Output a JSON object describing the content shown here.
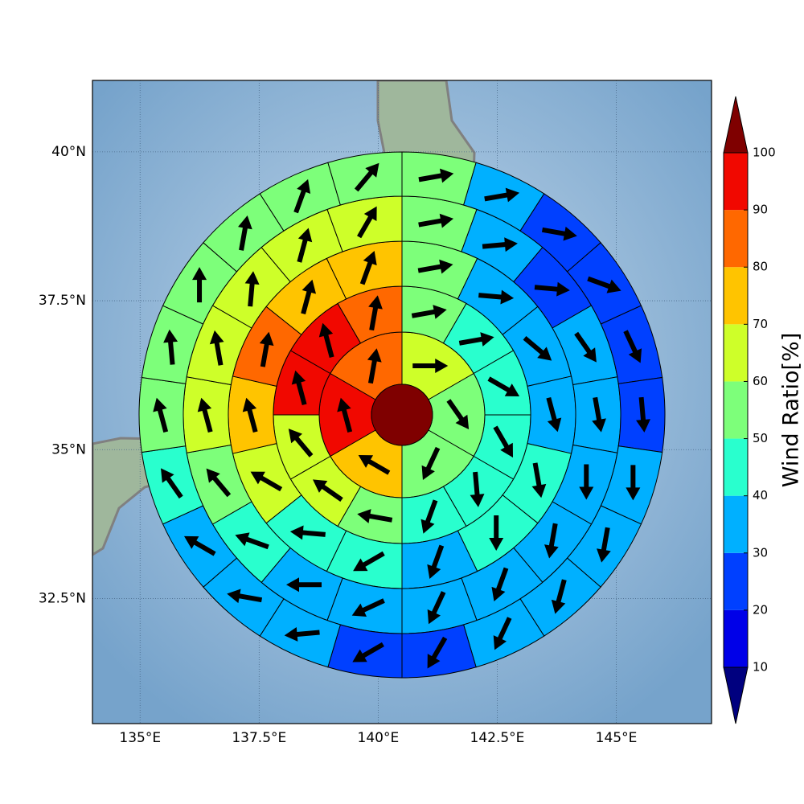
{
  "chart_data": {
    "type": "polar_grid_map",
    "xlim": [
      134,
      147
    ],
    "ylim": [
      30.4,
      41.2
    ],
    "xticks": [
      {
        "value": 135,
        "label": "135°E"
      },
      {
        "value": 137.5,
        "label": "137.5°E"
      },
      {
        "value": 140,
        "label": "140°E"
      },
      {
        "value": 142.5,
        "label": "142.5°E"
      },
      {
        "value": 145,
        "label": "145°E"
      }
    ],
    "yticks": [
      {
        "value": 32.5,
        "label": "32.5°N"
      },
      {
        "value": 35,
        "label": "35°N"
      },
      {
        "value": 37.5,
        "label": "37.5°N"
      },
      {
        "value": 40,
        "label": "40°N"
      }
    ],
    "grid": true,
    "center_value": 105,
    "rings": [
      {
        "values": [
          65,
          55,
          55,
          75,
          95,
          85
        ],
        "directions": [
          90,
          145,
          205,
          300,
          345,
          10
        ]
      },
      {
        "values": [
          55,
          45,
          45,
          45,
          45,
          45,
          55,
          65,
          65,
          95,
          95,
          85
        ],
        "directions": [
          80,
          80,
          120,
          150,
          175,
          200,
          280,
          305,
          320,
          345,
          345,
          10
        ]
      },
      {
        "values": [
          55,
          35,
          35,
          35,
          45,
          45,
          35,
          45,
          45,
          65,
          75,
          85,
          75,
          75
        ],
        "directions": [
          80,
          95,
          130,
          165,
          170,
          180,
          200,
          240,
          275,
          300,
          345,
          10,
          15,
          20
        ]
      },
      {
        "values": [
          55,
          35,
          25,
          35,
          35,
          35,
          35,
          35,
          35,
          35,
          35,
          45,
          55,
          65,
          65,
          65,
          65,
          65
        ],
        "directions": [
          80,
          85,
          95,
          145,
          170,
          180,
          190,
          200,
          205,
          245,
          270,
          290,
          320,
          345,
          350,
          5,
          15,
          30
        ]
      },
      {
        "values": [
          55,
          35,
          25,
          25,
          25,
          25,
          35,
          35,
          35,
          35,
          25,
          25,
          35,
          35,
          35,
          45,
          55,
          55,
          55,
          55,
          55,
          55
        ],
        "directions": [
          80,
          80,
          100,
          110,
          155,
          175,
          180,
          190,
          195,
          205,
          210,
          240,
          265,
          280,
          300,
          325,
          345,
          355,
          0,
          10,
          20,
          40
        ]
      }
    ],
    "colorbar": {
      "label": "Wind Ratio[%]",
      "levels": [
        10,
        20,
        30,
        40,
        50,
        60,
        70,
        80,
        90,
        100
      ],
      "colors": [
        "#0000e8",
        "#0040ff",
        "#00b0ff",
        "#29ffce",
        "#7dff7a",
        "#ceff29",
        "#ffc400",
        "#ff6800",
        "#f10800"
      ],
      "under_color": "#00007f",
      "over_color": "#7f0000"
    }
  }
}
